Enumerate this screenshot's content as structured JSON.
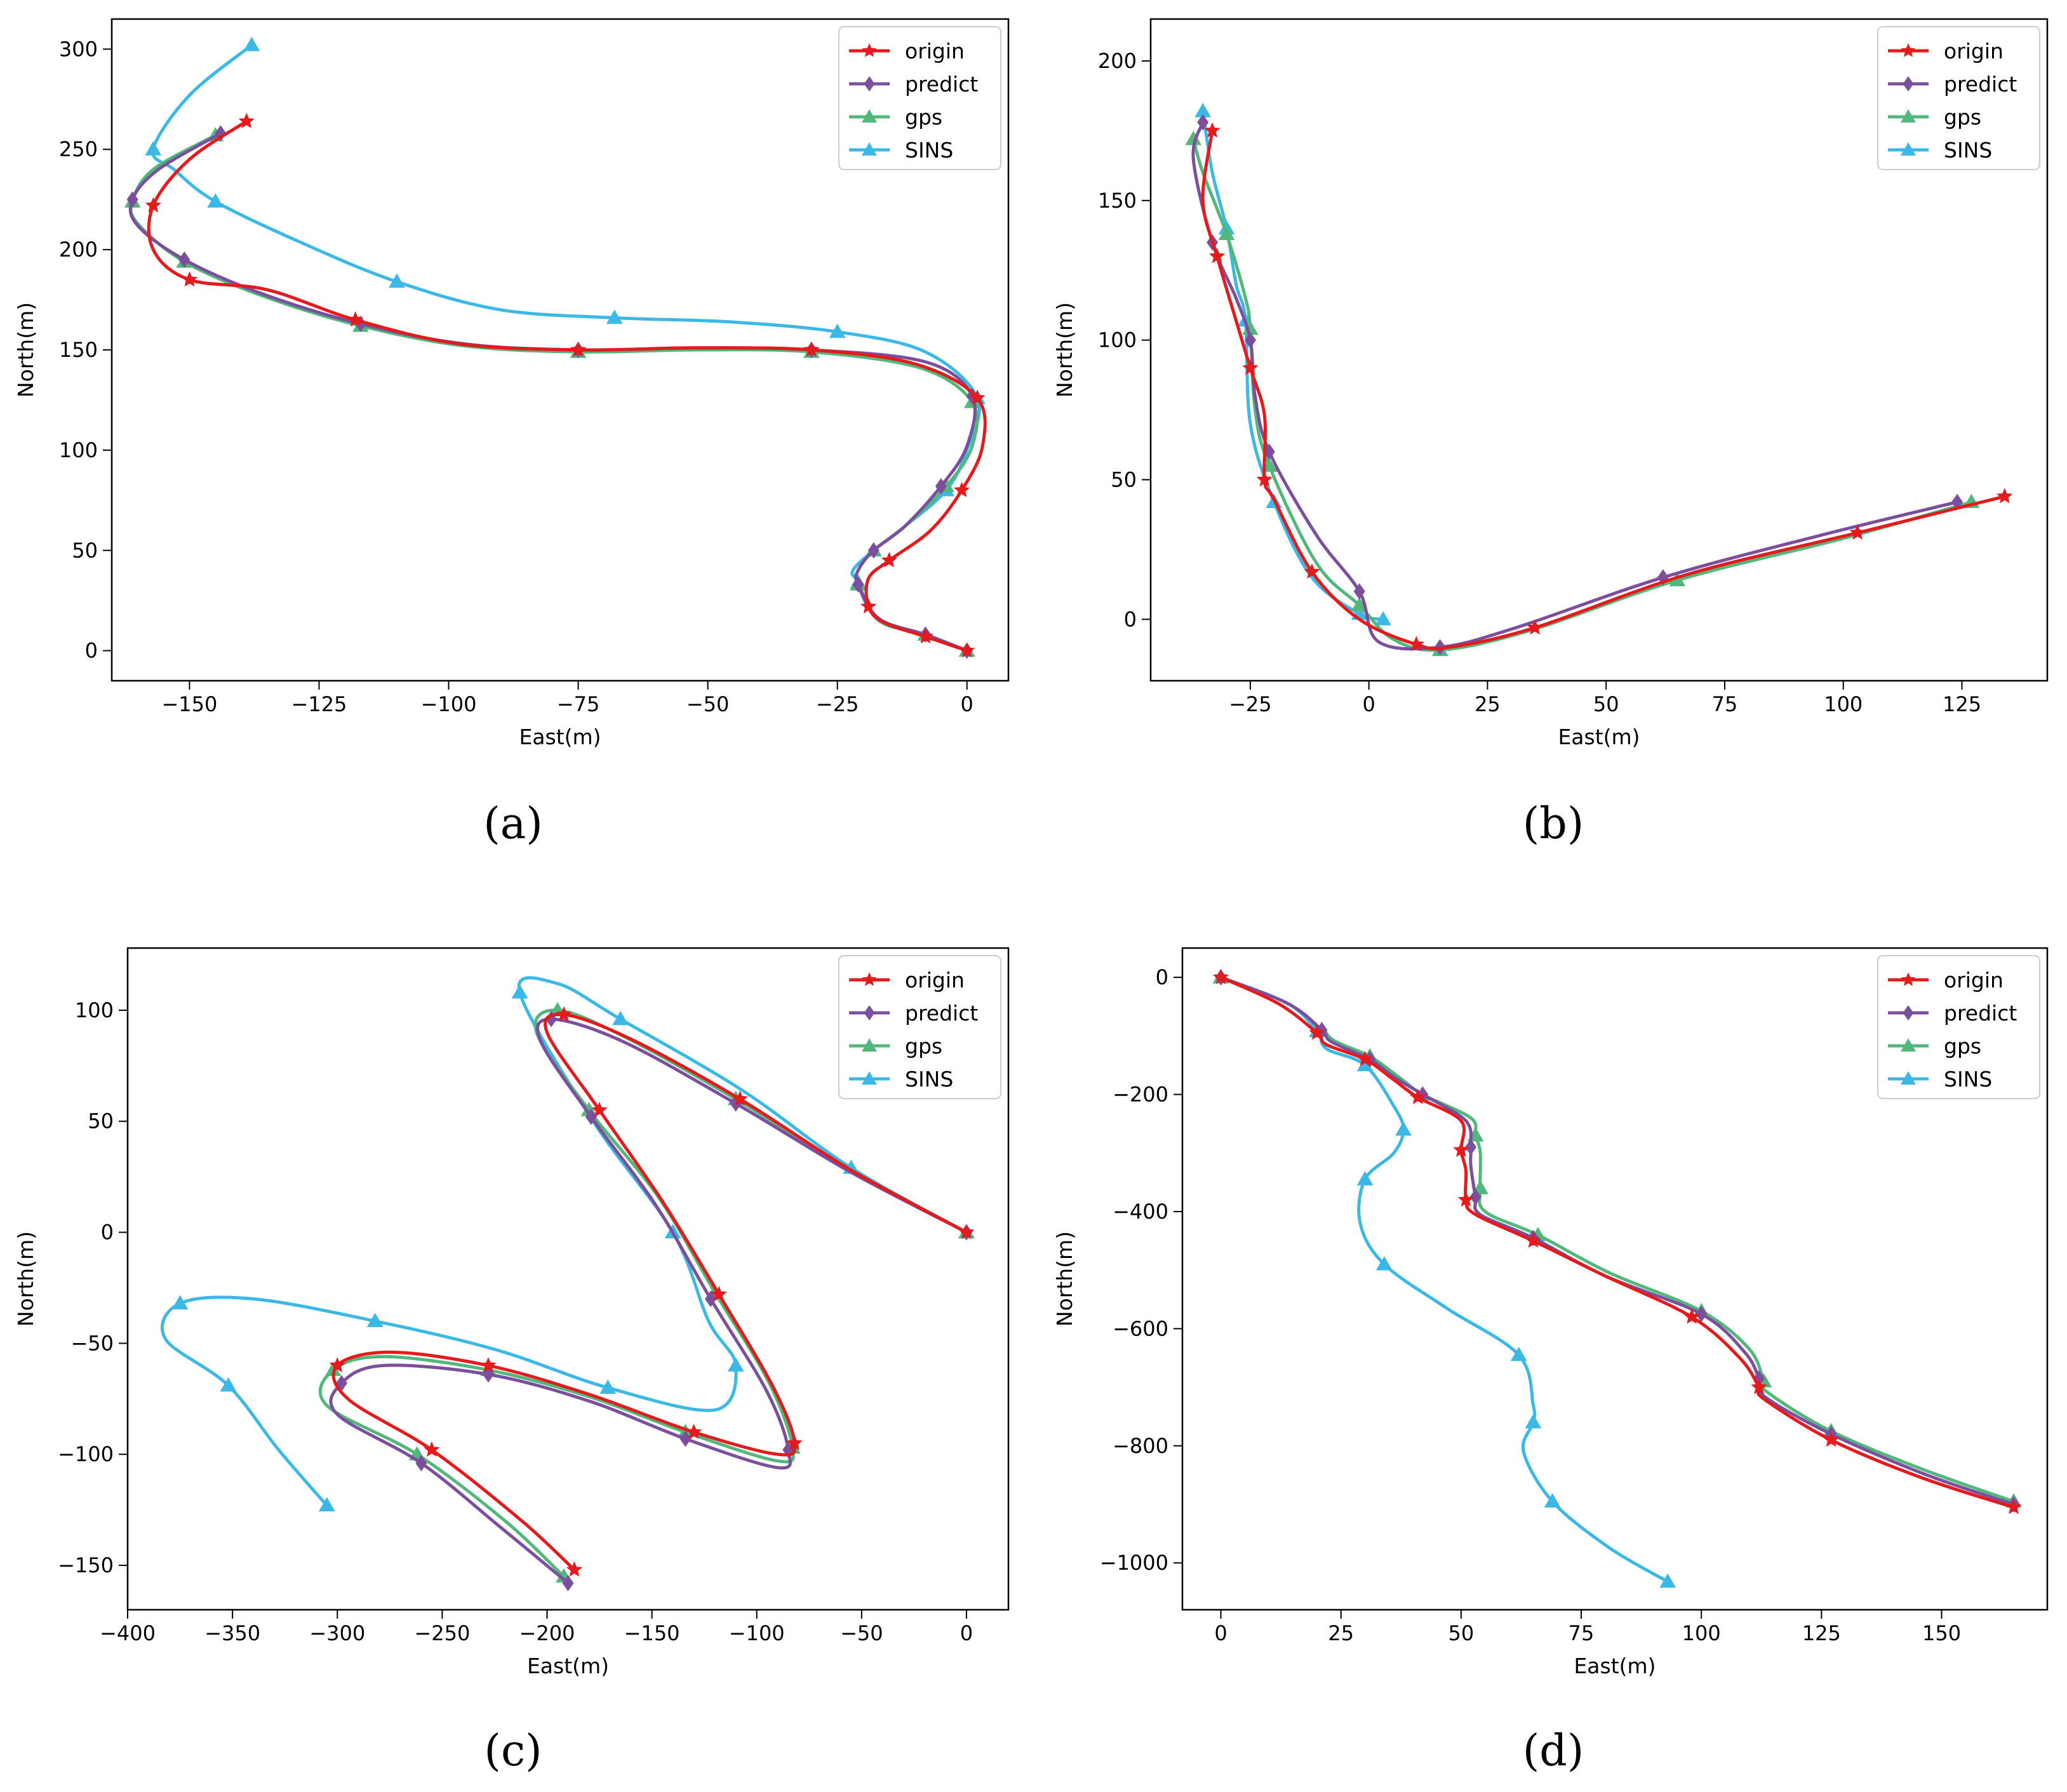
{
  "figure": {
    "panel_labels": [
      "(a)",
      "(b)",
      "(c)",
      "(d)"
    ]
  },
  "legend_labels": [
    "origin",
    "predict",
    "gps",
    "SINS"
  ],
  "colors": {
    "origin": "#e41a1c",
    "predict": "#7b4f9e",
    "gps": "#52b77a",
    "SINS": "#3cb8e6"
  },
  "chart_data": [
    {
      "type": "line",
      "panel": "(a)",
      "xlabel": "East(m)",
      "ylabel": "North(m)",
      "xlim": [
        -165,
        8
      ],
      "ylim": [
        -15,
        315
      ],
      "xticks": [
        -150,
        -125,
        -100,
        -75,
        -50,
        -25,
        0
      ],
      "yticks": [
        0,
        50,
        100,
        150,
        200,
        250,
        300
      ],
      "xtick_labels": [
        "−150",
        "−125",
        "−100",
        "−75",
        "−50",
        "−25",
        "0"
      ],
      "ytick_labels": [
        "0",
        "50",
        "100",
        "150",
        "200",
        "250",
        "300"
      ],
      "legend": "top-right",
      "series": [
        {
          "name": "origin",
          "x": [
            -139,
            -150,
            -157,
            -157,
            -150,
            -135,
            -118,
            -98,
            -75,
            -52,
            -30,
            -10,
            2,
            3,
            -1,
            -7,
            -15,
            -19,
            -19,
            -16,
            -8,
            0
          ],
          "y": [
            264,
            245,
            222,
            200,
            185,
            180,
            165,
            153,
            150,
            151,
            150,
            143,
            126,
            102,
            80,
            60,
            45,
            36,
            22,
            14,
            7,
            0
          ]
        },
        {
          "name": "predict",
          "x": [
            -144,
            -156,
            -161,
            -160,
            -151,
            -136,
            -117,
            -97,
            -75,
            -52,
            -30,
            -8,
            1,
            0,
            -5,
            -12,
            -18,
            -21,
            -21,
            -17,
            -8,
            0
          ],
          "y": [
            258,
            240,
            225,
            212,
            195,
            178,
            163,
            153,
            150,
            151,
            150,
            144,
            127,
            102,
            82,
            62,
            50,
            40,
            33,
            16,
            8,
            0
          ]
        },
        {
          "name": "gps",
          "x": [
            -145,
            -157,
            -161,
            -160,
            -151,
            -136,
            -117,
            -97,
            -75,
            -52,
            -30,
            -9,
            1,
            1,
            -4,
            -12,
            -18,
            -21,
            -21,
            -17,
            -8,
            0
          ],
          "y": [
            257,
            240,
            224,
            213,
            194,
            177,
            162,
            152,
            149,
            150,
            149,
            141,
            124,
            102,
            82,
            62,
            50,
            40,
            33,
            15,
            8,
            0
          ]
        },
        {
          "name": "SINS",
          "x": [
            -138,
            -150,
            -157,
            -153,
            -145,
            -128,
            -110,
            -90,
            -68,
            -46,
            -25,
            -8,
            2,
            0,
            -4,
            -12,
            -18,
            -22,
            -21,
            -17,
            -8,
            0
          ],
          "y": [
            302,
            277,
            250,
            240,
            224,
            203,
            184,
            170,
            166,
            164,
            159,
            149,
            126,
            100,
            80,
            62,
            50,
            40,
            34,
            15,
            8,
            0
          ]
        }
      ]
    },
    {
      "type": "line",
      "panel": "(b)",
      "xlabel": "East(m)",
      "ylabel": "North(m)",
      "xlim": [
        -46,
        143
      ],
      "ylim": [
        -22,
        215
      ],
      "xticks": [
        -25,
        0,
        25,
        50,
        75,
        100,
        125
      ],
      "yticks": [
        0,
        50,
        100,
        150,
        200
      ],
      "xtick_labels": [
        "−25",
        "0",
        "25",
        "50",
        "75",
        "100",
        "125"
      ],
      "ytick_labels": [
        "0",
        "50",
        "100",
        "150",
        "200"
      ],
      "legend": "top-right",
      "series": [
        {
          "name": "origin",
          "x": [
            -33,
            -35,
            -32,
            -28,
            -25,
            -22,
            -22,
            -20,
            -12,
            -2,
            10,
            17,
            35,
            67,
            103,
            134
          ],
          "y": [
            175,
            150,
            130,
            107,
            90,
            73,
            50,
            43,
            17,
            0,
            -9,
            -10,
            -3,
            16,
            31,
            44
          ],
          "y_upper": null
        },
        {
          "name": "predict",
          "x": [
            -35,
            -37,
            -33,
            -28,
            -25,
            -24,
            -21,
            -11,
            -2,
            2,
            15,
            31,
            62,
            95,
            124
          ],
          "y": [
            178,
            165,
            135,
            115,
            100,
            80,
            60,
            30,
            10,
            -8,
            -10,
            -3,
            15,
            30,
            42
          ]
        },
        {
          "name": "gps",
          "x": [
            -37,
            -35,
            -30,
            -26,
            -25,
            -24,
            -21,
            -11,
            -2,
            5,
            15,
            34,
            65,
            100,
            127
          ],
          "y": [
            172,
            160,
            138,
            115,
            104,
            75,
            55,
            20,
            5,
            -7,
            -11,
            -4,
            14,
            29,
            42
          ]
        },
        {
          "name": "SINS",
          "x": [
            -35,
            -33,
            -30,
            -28,
            -26,
            -25,
            -20,
            -12,
            -2,
            3
          ],
          "y": [
            182,
            160,
            140,
            120,
            107,
            70,
            42,
            15,
            2,
            0
          ]
        }
      ]
    },
    {
      "type": "line",
      "panel": "(c)",
      "xlabel": "East(m)",
      "ylabel": "North(m)",
      "xlim": [
        -400,
        20
      ],
      "ylim": [
        -170,
        128
      ],
      "xticks": [
        -400,
        -350,
        -300,
        -250,
        -200,
        -150,
        -100,
        -50,
        0
      ],
      "yticks": [
        -150,
        -100,
        -50,
        0,
        50,
        100
      ],
      "xtick_labels": [
        "−400",
        "−350",
        "−300",
        "−250",
        "−200",
        "−150",
        "−100",
        "−50",
        "0"
      ],
      "ytick_labels": [
        "−150",
        "−100",
        "−50",
        "0",
        "50",
        "100"
      ],
      "legend": "top-right",
      "series": [
        {
          "name": "origin",
          "x": [
            -187,
            -212,
            -255,
            -295,
            -300,
            -275,
            -228,
            -180,
            -130,
            -90,
            -82,
            -92,
            -118,
            -145,
            -175,
            -200,
            -192,
            -160,
            -108,
            -55,
            0
          ],
          "y": [
            -152,
            -130,
            -98,
            -75,
            -60,
            -54,
            -60,
            -73,
            -90,
            -100,
            -95,
            -70,
            -28,
            14,
            55,
            90,
            98,
            87,
            60,
            28,
            0
          ]
        },
        {
          "name": "predict",
          "x": [
            -190,
            -222,
            -260,
            -300,
            -298,
            -278,
            -228,
            -180,
            -134,
            -90,
            -85,
            -95,
            -122,
            -148,
            -179,
            -203,
            -198,
            -164,
            -110,
            -55,
            0
          ],
          "y": [
            -158,
            -133,
            -104,
            -82,
            -68,
            -60,
            -64,
            -76,
            -93,
            -106,
            -98,
            -72,
            -30,
            12,
            52,
            86,
            96,
            86,
            58,
            27,
            0
          ]
        },
        {
          "name": "gps",
          "x": [
            -192,
            -220,
            -262,
            -305,
            -302,
            -278,
            -228,
            -180,
            -134,
            -90,
            -83,
            -94,
            -120,
            -147,
            -180,
            -205,
            -195,
            -163,
            -110,
            -55,
            0
          ],
          "y": [
            -155,
            -130,
            -100,
            -78,
            -62,
            -56,
            -62,
            -74,
            -90,
            -103,
            -97,
            -68,
            -27,
            16,
            55,
            90,
            100,
            88,
            60,
            28,
            0
          ]
        },
        {
          "name": "SINS",
          "x": [
            -305,
            -328,
            -352,
            -382,
            -375,
            -340,
            -282,
            -224,
            -171,
            -120,
            -110,
            -123,
            -140,
            -178,
            -213,
            -195,
            -165,
            -107,
            -55,
            0
          ],
          "y": [
            -123,
            -98,
            -69,
            -48,
            -32,
            -30,
            -40,
            -53,
            -70,
            -80,
            -60,
            -40,
            0,
            50,
            108,
            112,
            96,
            64,
            29,
            0
          ]
        }
      ]
    },
    {
      "type": "line",
      "panel": "(d)",
      "xlabel": "East(m)",
      "ylabel": "North(m)",
      "xlim": [
        -8,
        172
      ],
      "ylim": [
        -1080,
        50
      ],
      "xticks": [
        0,
        25,
        50,
        75,
        100,
        125,
        150
      ],
      "yticks": [
        0,
        -200,
        -400,
        -600,
        -800,
        -1000
      ],
      "xtick_labels": [
        "0",
        "25",
        "50",
        "75",
        "100",
        "125",
        "150"
      ],
      "ytick_labels": [
        "0",
        "−200",
        "−400",
        "−600",
        "−800",
        "−1000"
      ],
      "legend": "top-right",
      "series": [
        {
          "name": "origin",
          "x": [
            0,
            12,
            20,
            22,
            30,
            36,
            41,
            50,
            50,
            51,
            51,
            53,
            65,
            80,
            98,
            108,
            112,
            113,
            127,
            146,
            165
          ],
          "y": [
            0,
            -45,
            -95,
            -115,
            -140,
            -175,
            -205,
            -245,
            -295,
            -330,
            -380,
            -405,
            -450,
            -510,
            -580,
            -650,
            -700,
            -720,
            -790,
            -855,
            -905
          ]
        },
        {
          "name": "predict",
          "x": [
            0,
            14,
            21,
            23,
            31,
            36,
            42,
            51,
            52,
            52,
            53,
            54,
            65,
            80,
            100,
            109,
            112,
            113,
            127,
            147,
            165
          ],
          "y": [
            0,
            -45,
            -90,
            -110,
            -140,
            -170,
            -200,
            -245,
            -290,
            -320,
            -375,
            -405,
            -445,
            -510,
            -575,
            -640,
            -685,
            -715,
            -780,
            -850,
            -900
          ]
        },
        {
          "name": "gps",
          "x": [
            0,
            14,
            21,
            24,
            31,
            37,
            42,
            52,
            53,
            54,
            54,
            55,
            66,
            81,
            100,
            110,
            113,
            114,
            127,
            146,
            165
          ],
          "y": [
            0,
            -45,
            -90,
            -110,
            -135,
            -170,
            -200,
            -240,
            -270,
            -300,
            -360,
            -400,
            -440,
            -505,
            -570,
            -635,
            -690,
            -710,
            -775,
            -840,
            -895
          ]
        },
        {
          "name": "SINS",
          "x": [
            0,
            14,
            20,
            22,
            30,
            36,
            38,
            36,
            30,
            29,
            34,
            47,
            62,
            65,
            65,
            63,
            69,
            81,
            93
          ],
          "y": [
            0,
            -45,
            -92,
            -122,
            -150,
            -220,
            -260,
            -300,
            -345,
            -420,
            -490,
            -565,
            -645,
            -730,
            -760,
            -810,
            -895,
            -975,
            -1032
          ]
        }
      ]
    }
  ]
}
